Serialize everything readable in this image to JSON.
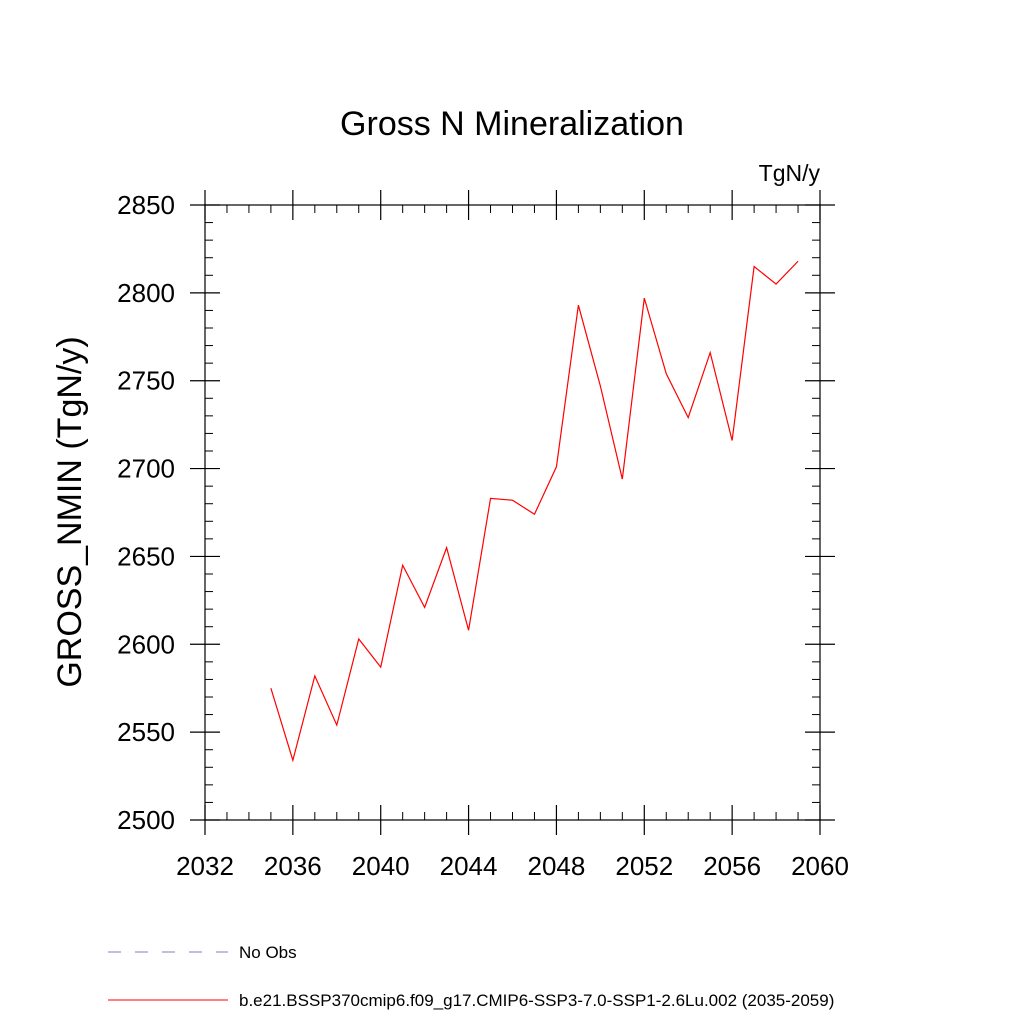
{
  "chart_data": {
    "type": "line",
    "title": "Gross N Mineralization",
    "units_label": "TgN/y",
    "ylabel": "GROSS_NMIN  (TgN/y)",
    "xlabel": "",
    "xlim": [
      2032,
      2060
    ],
    "ylim": [
      2500,
      2850
    ],
    "x_ticks": [
      2032,
      2036,
      2040,
      2044,
      2048,
      2052,
      2056,
      2060
    ],
    "y_ticks": [
      2500,
      2550,
      2600,
      2650,
      2700,
      2750,
      2800,
      2850
    ],
    "x_minor_step": 1,
    "y_minor_step": 10,
    "grid": false,
    "legend_placement": "bottom-left, below plot",
    "series": [
      {
        "name": "b.e21.BSSP370cmip6.f09_g17.CMIP6-SSP3-7.0-SSP1-2.6Lu.002 (2035-2059)",
        "color": "#ff0000",
        "x": [
          2035,
          2036,
          2037,
          2038,
          2039,
          2040,
          2041,
          2042,
          2043,
          2044,
          2045,
          2046,
          2047,
          2048,
          2049,
          2050,
          2051,
          2052,
          2053,
          2054,
          2055,
          2056,
          2057,
          2058,
          2059
        ],
        "values": [
          2575,
          2534,
          2582,
          2554,
          2603,
          2587,
          2645,
          2621,
          2655,
          2608,
          2683,
          2682,
          2674,
          2701,
          2793,
          2747,
          2694,
          2797,
          2754,
          2729,
          2766,
          2716,
          2815,
          2805,
          2818
        ]
      }
    ],
    "legend": [
      {
        "label": "No Obs",
        "color": "#7f7fbf",
        "style": "dashed"
      },
      {
        "label": "b.e21.BSSP370cmip6.f09_g17.CMIP6-SSP3-7.0-SSP1-2.6Lu.002 (2035-2059)",
        "color": "#ff0000",
        "style": "solid"
      }
    ]
  }
}
